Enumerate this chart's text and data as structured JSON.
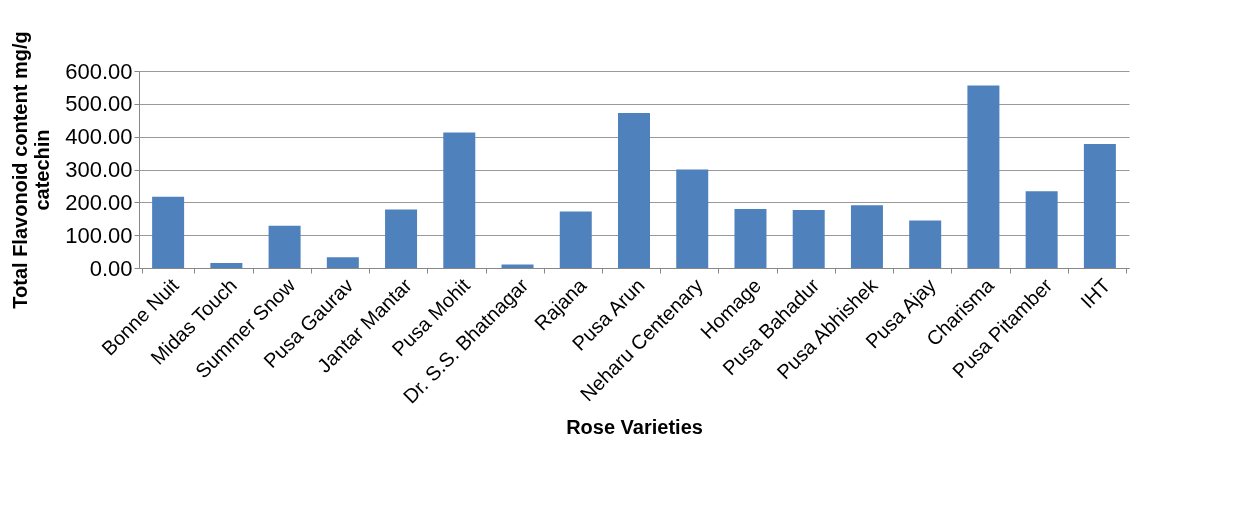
{
  "chart_data": {
    "type": "bar",
    "xlabel": "Rose Varieties",
    "ylabel": "Total Flavonoid content mg/g catechin",
    "categories": [
      "Bonne Nuit",
      "Midas Touch",
      "Summer Snow",
      "Pusa Gaurav",
      "Jantar Mantar",
      "Pusa Mohit",
      "Dr. S.S. Bhatnagar",
      "Rajana",
      "Pusa Arun",
      "Neharu Centenary",
      "Homage",
      "Pusa Bahadur",
      "Pusa Abhishek",
      "Pusa Ajay",
      "Charisma",
      "Pusa Pitamber",
      "IHT"
    ],
    "values": [
      217,
      15,
      129,
      33,
      178,
      413,
      11,
      172,
      472,
      300,
      180,
      177,
      191,
      145,
      556,
      234,
      378
    ],
    "color": "#4f81bd",
    "ylim": [
      0,
      600
    ],
    "yticks": [
      {
        "value": 0,
        "label": "0.00"
      },
      {
        "value": 100,
        "label": "100.00"
      },
      {
        "value": 200,
        "label": "200.00"
      },
      {
        "value": 300,
        "label": "300.00"
      },
      {
        "value": 400,
        "label": "400.00"
      },
      {
        "value": 500,
        "label": "500.00"
      },
      {
        "value": 600,
        "label": "600.00"
      }
    ],
    "grid": "y",
    "legend": false
  }
}
